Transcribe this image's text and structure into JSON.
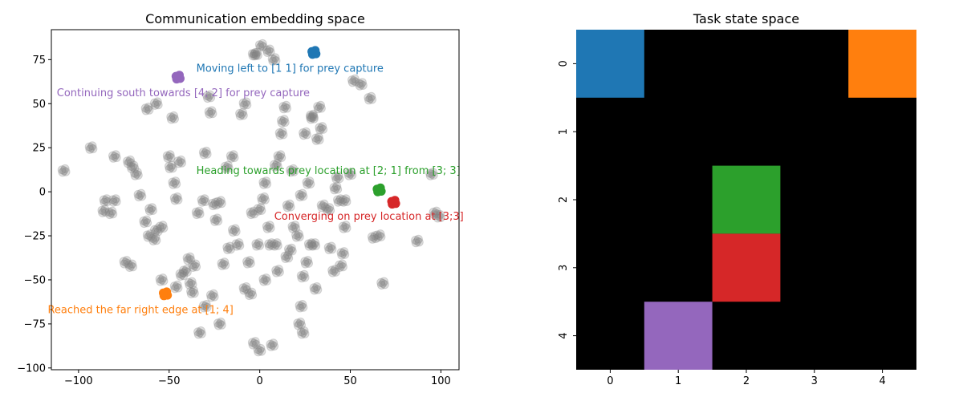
{
  "chart_data": [
    {
      "type": "scatter",
      "title": "Communication embedding space",
      "xlabel": "",
      "ylabel": "",
      "xlim": [
        -115,
        110
      ],
      "ylim": [
        -101,
        92
      ],
      "x_ticks": [
        -100,
        -50,
        0,
        50,
        100
      ],
      "y_ticks": [
        -100,
        -75,
        -50,
        -25,
        0,
        25,
        50,
        75
      ],
      "grid": false,
      "background_color": "#808080",
      "background_points": [
        [
          -108,
          12
        ],
        [
          -93,
          25
        ],
        [
          -85,
          -5
        ],
        [
          -82,
          -12
        ],
        [
          -80,
          20
        ],
        [
          -74,
          -40
        ],
        [
          -72,
          17
        ],
        [
          -70,
          14
        ],
        [
          -68,
          10
        ],
        [
          -66,
          -2
        ],
        [
          -63,
          -17
        ],
        [
          -60,
          -10
        ],
        [
          -58,
          -27
        ],
        [
          -57,
          -22
        ],
        [
          -54,
          -20
        ],
        [
          -62,
          47
        ],
        [
          -57,
          50
        ],
        [
          -54,
          -50
        ],
        [
          -50,
          20
        ],
        [
          -49,
          14
        ],
        [
          -47,
          5
        ],
        [
          -46,
          -4
        ],
        [
          -44,
          17
        ],
        [
          -43,
          -47
        ],
        [
          -41,
          -45
        ],
        [
          -39,
          -38
        ],
        [
          -38,
          -52
        ],
        [
          -36,
          -42
        ],
        [
          -34,
          -12
        ],
        [
          -33,
          -80
        ],
        [
          -31,
          -5
        ],
        [
          -30,
          22
        ],
        [
          -30,
          -65
        ],
        [
          -28,
          54
        ],
        [
          -27,
          45
        ],
        [
          -25,
          -7
        ],
        [
          -24,
          -16
        ],
        [
          -22,
          -75
        ],
        [
          -20,
          -41
        ],
        [
          -18,
          14
        ],
        [
          -17,
          -32
        ],
        [
          -15,
          20
        ],
        [
          -14,
          -22
        ],
        [
          -12,
          -30
        ],
        [
          -10,
          44
        ],
        [
          -8,
          -55
        ],
        [
          -6,
          -40
        ],
        [
          -5,
          -58
        ],
        [
          -4,
          -12
        ],
        [
          -3,
          -86
        ],
        [
          -2,
          78
        ],
        [
          -1,
          -30
        ],
        [
          0,
          -90
        ],
        [
          0,
          -10
        ],
        [
          2,
          -4
        ],
        [
          3,
          5
        ],
        [
          3,
          -50
        ],
        [
          5,
          80
        ],
        [
          5,
          -20
        ],
        [
          6,
          -30
        ],
        [
          7,
          -87
        ],
        [
          8,
          75
        ],
        [
          9,
          15
        ],
        [
          10,
          -45
        ],
        [
          11,
          20
        ],
        [
          12,
          33
        ],
        [
          13,
          40
        ],
        [
          14,
          48
        ],
        [
          15,
          -37
        ],
        [
          16,
          -8
        ],
        [
          17,
          -33
        ],
        [
          18,
          12
        ],
        [
          19,
          -20
        ],
        [
          21,
          -25
        ],
        [
          22,
          -75
        ],
        [
          23,
          -2
        ],
        [
          23,
          -65
        ],
        [
          24,
          -80
        ],
        [
          25,
          33
        ],
        [
          26,
          -40
        ],
        [
          27,
          5
        ],
        [
          28,
          -30
        ],
        [
          29,
          43
        ],
        [
          30,
          -30
        ],
        [
          31,
          -55
        ],
        [
          32,
          30
        ],
        [
          33,
          48
        ],
        [
          34,
          36
        ],
        [
          38,
          -10
        ],
        [
          41,
          -45
        ],
        [
          42,
          2
        ],
        [
          43,
          8
        ],
        [
          45,
          -42
        ],
        [
          46,
          -35
        ],
        [
          47,
          -20
        ],
        [
          50,
          10
        ],
        [
          52,
          63
        ],
        [
          56,
          61
        ],
        [
          61,
          53
        ],
        [
          66,
          -25
        ],
        [
          68,
          -52
        ],
        [
          87,
          -28
        ],
        [
          95,
          10
        ],
        [
          99,
          -14
        ],
        [
          97,
          -12
        ],
        [
          -86,
          -11
        ],
        [
          -80,
          -5
        ],
        [
          -71,
          -42
        ],
        [
          -61,
          -25
        ],
        [
          -48,
          42
        ],
        [
          -46,
          -54
        ],
        [
          -37,
          -57
        ],
        [
          -22,
          -6
        ],
        [
          -8,
          50
        ],
        [
          9,
          -30
        ],
        [
          24,
          -48
        ],
        [
          35,
          -8
        ],
        [
          39,
          -32
        ],
        [
          47,
          -5
        ],
        [
          63,
          -26
        ],
        [
          44,
          -5
        ],
        [
          -3,
          78
        ],
        [
          1,
          83
        ],
        [
          29,
          42
        ],
        [
          -26,
          -59
        ]
      ],
      "highlights": [
        {
          "label": "Moving left to [1 1] for prey capture",
          "color": "#1f77b4",
          "x": 30,
          "y": 79,
          "text_x": -35,
          "text_y": 70
        },
        {
          "label": "Continuing south towards [4; 2] for prey capture",
          "color": "#9467bd",
          "x": -45,
          "y": 65,
          "text_x": -112,
          "text_y": 56
        },
        {
          "label": "Heading towards prey location at [2; 1] from [3; 3]",
          "color": "#2ca02c",
          "x": 66,
          "y": 1,
          "text_x": -35,
          "text_y": 12
        },
        {
          "label": "Converging on prey location at [3;3]",
          "color": "#d62728",
          "x": 74,
          "y": -6,
          "text_x": 8,
          "text_y": -14
        },
        {
          "label": "Reached the far right edge at [1; 4]",
          "color": "#ff7f0e",
          "x": -52,
          "y": -58,
          "text_x": -117,
          "text_y": -67
        }
      ]
    },
    {
      "type": "heatmap",
      "title": "Task state space",
      "x_ticks": [
        "0",
        "1",
        "2",
        "3",
        "4"
      ],
      "y_ticks": [
        "0",
        "1",
        "2",
        "3",
        "4"
      ],
      "background_color": "#000000",
      "cells": [
        {
          "row": 0,
          "col": 0,
          "color": "#1f77b4"
        },
        {
          "row": 0,
          "col": 4,
          "color": "#ff7f0e"
        },
        {
          "row": 2,
          "col": 2,
          "color": "#2ca02c"
        },
        {
          "row": 3,
          "col": 2,
          "color": "#d62728"
        },
        {
          "row": 4,
          "col": 1,
          "color": "#9467bd"
        }
      ]
    }
  ]
}
